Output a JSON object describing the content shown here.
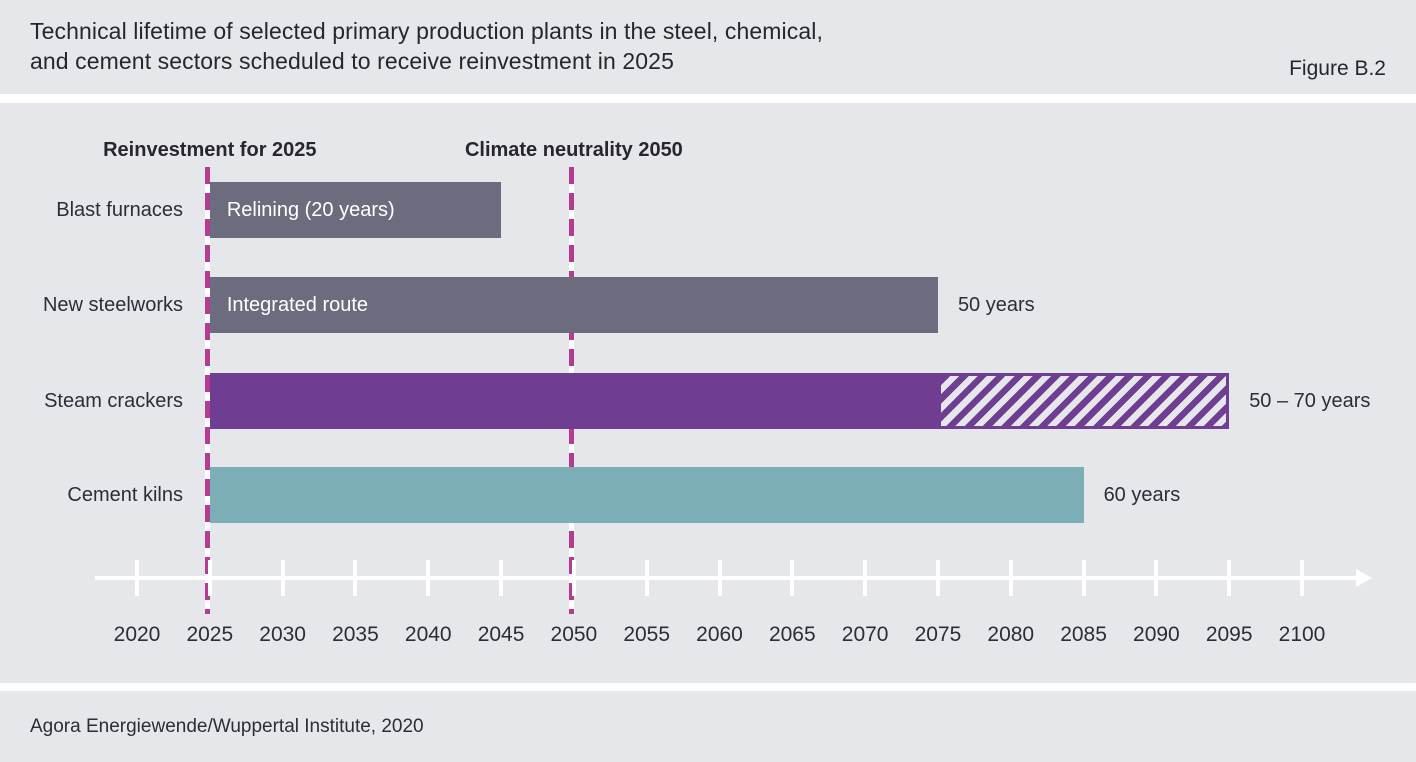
{
  "header": {
    "title": "Technical lifetime of selected primary production plants in the steel, chemical,\nand cement sectors scheduled to receive reinvestment in 2025",
    "figure_label": "Figure B.2"
  },
  "footer": {
    "source": "Agora Energiewende/Wuppertal Institute, 2020"
  },
  "colors": {
    "background": "#e6e7eb",
    "separator": "#ffffff",
    "bar_gray": "#6b6d7e",
    "bar_purple": "#6f3d92",
    "bar_teal": "#7caeb7",
    "reference_magenta": "#b43b92",
    "axis_white": "#ffffff",
    "text_dark": "#2b2d38"
  },
  "chart_data": {
    "type": "bar",
    "orientation": "horizontal",
    "unit": "years",
    "x_axis": {
      "min": 2020,
      "max": 2100,
      "step": 5,
      "tick_labels": [
        "2020",
        "2025",
        "2030",
        "2035",
        "2040",
        "2045",
        "2050",
        "2055",
        "2060",
        "2065",
        "2070",
        "2075",
        "2080",
        "2085",
        "2090",
        "2095",
        "2100"
      ]
    },
    "reference_lines": [
      {
        "year": 2025,
        "label": "Reinvestment for 2025"
      },
      {
        "year": 2050,
        "label": "Climate neutrality 2050"
      }
    ],
    "rows": [
      {
        "category": "Blast furnaces",
        "segments": [
          {
            "start": 2025,
            "end": 2045,
            "style": "solid",
            "color": "#6b6d7e",
            "inner_label": "Relining (20 years)"
          }
        ],
        "value_label": ""
      },
      {
        "category": "New steelworks",
        "segments": [
          {
            "start": 2025,
            "end": 2075,
            "style": "solid",
            "color": "#6b6d7e",
            "inner_label": "Integrated route"
          }
        ],
        "value_label": "50 years"
      },
      {
        "category": "Steam crackers",
        "segments": [
          {
            "start": 2025,
            "end": 2075,
            "style": "solid",
            "color": "#6f3d92",
            "inner_label": ""
          },
          {
            "start": 2075,
            "end": 2095,
            "style": "hatched",
            "color": "#6f3d92",
            "inner_label": ""
          }
        ],
        "value_label": "50 – 70 years"
      },
      {
        "category": "Cement kilns",
        "segments": [
          {
            "start": 2025,
            "end": 2085,
            "style": "solid",
            "color": "#7caeb7",
            "inner_label": ""
          }
        ],
        "value_label": "60 years"
      }
    ]
  }
}
